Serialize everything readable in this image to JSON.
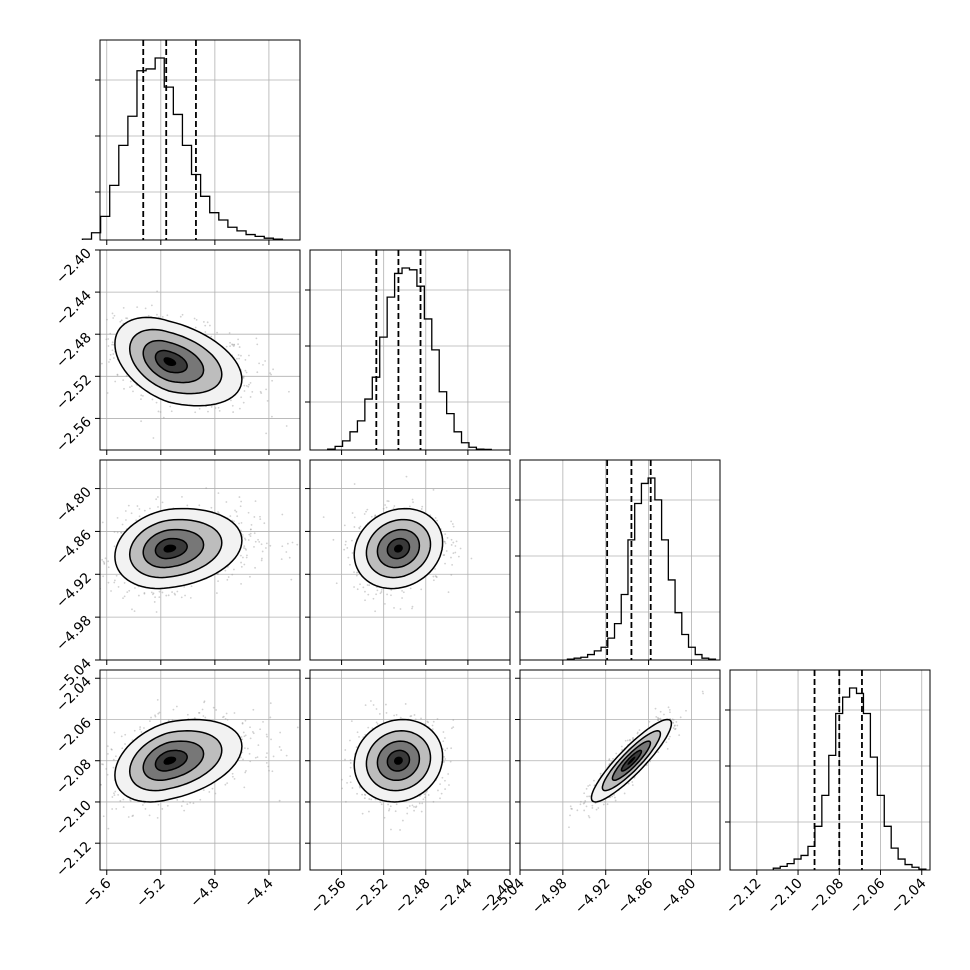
{
  "chart_data": {
    "type": "corner",
    "grid": true,
    "parameters": [
      {
        "range": [
          -5.65,
          -4.17
        ],
        "ticks": [
          -5.6,
          -5.2,
          -4.8,
          -4.4
        ],
        "tick_labels": [
          "−5.6",
          "−5.2",
          "−4.8",
          "−4.4"
        ],
        "quantiles": [
          -5.33,
          -5.16,
          -4.94
        ],
        "mean": -5.14,
        "sd": 0.2,
        "hist_counts": [
          0.005,
          0.04,
          0.13,
          0.3,
          0.52,
          0.68,
          0.93,
          0.94,
          1.0,
          0.84,
          0.69,
          0.52,
          0.36,
          0.24,
          0.15,
          0.11,
          0.07,
          0.05,
          0.03,
          0.02,
          0.01,
          0.005
        ]
      },
      {
        "range": [
          -2.59,
          -2.4
        ],
        "ticks": [
          -2.56,
          -2.52,
          -2.48,
          -2.44,
          -2.4
        ],
        "tick_labels": [
          "−2.56",
          "−2.52",
          "−2.48",
          "−2.44",
          "−2.40"
        ],
        "quantiles": [
          -2.527,
          -2.506,
          -2.485
        ],
        "mean": -2.506,
        "sd": 0.021,
        "hist_counts": [
          0.005,
          0.02,
          0.05,
          0.1,
          0.16,
          0.28,
          0.4,
          0.62,
          0.84,
          0.97,
          1.0,
          0.99,
          0.9,
          0.72,
          0.55,
          0.32,
          0.2,
          0.1,
          0.04,
          0.015,
          0.005,
          0.003
        ]
      },
      {
        "range": [
          -5.04,
          -4.76
        ],
        "ticks": [
          -5.04,
          -4.98,
          -4.92,
          -4.86,
          -4.8
        ],
        "tick_labels": [
          "−5.04",
          "−4.98",
          "−4.92",
          "−4.86",
          "−4.80"
        ],
        "quantiles": [
          -4.918,
          -4.884,
          -4.857
        ],
        "mean": -4.884,
        "sd": 0.028,
        "hist_counts": [
          0.005,
          0.01,
          0.015,
          0.03,
          0.05,
          0.07,
          0.12,
          0.2,
          0.36,
          0.66,
          0.86,
          0.97,
          1.0,
          0.88,
          0.66,
          0.44,
          0.26,
          0.14,
          0.07,
          0.03,
          0.01,
          0.005
        ]
      },
      {
        "range": [
          -2.133,
          -2.036
        ],
        "ticks": [
          -2.12,
          -2.1,
          -2.08,
          -2.06,
          -2.04
        ],
        "tick_labels": [
          "−2.12",
          "−2.10",
          "−2.08",
          "−2.06",
          "−2.04"
        ],
        "quantiles": [
          -2.092,
          -2.08,
          -2.069
        ],
        "mean": -2.08,
        "sd": 0.01,
        "hist_counts": [
          0.01,
          0.02,
          0.035,
          0.06,
          0.08,
          0.13,
          0.24,
          0.41,
          0.63,
          0.86,
          0.95,
          1.0,
          0.97,
          0.86,
          0.62,
          0.41,
          0.24,
          0.12,
          0.06,
          0.03,
          0.015,
          0.005
        ]
      }
    ],
    "correlations": [
      [
        1,
        -0.4,
        0.2,
        0.35
      ],
      [
        -0.4,
        1,
        0.15,
        0.1
      ],
      [
        0.2,
        0.15,
        1,
        0.9
      ],
      [
        0.35,
        0.1,
        0.9,
        1
      ]
    ],
    "hist_yticks": [
      0.24,
      0.52,
      0.8
    ]
  }
}
